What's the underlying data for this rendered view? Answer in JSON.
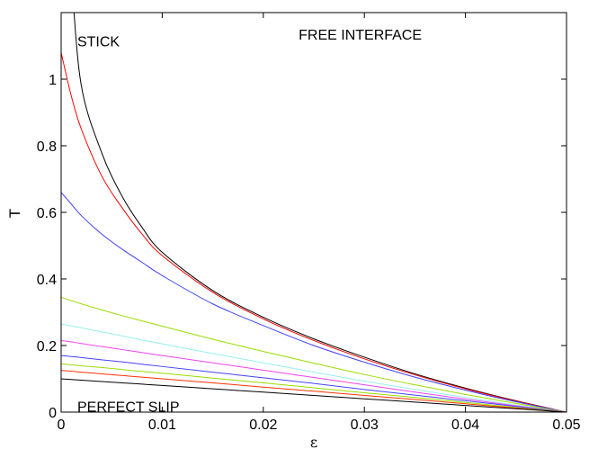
{
  "chart_data": {
    "type": "line",
    "title": "",
    "xlabel": "ε",
    "ylabel": "T",
    "xlim": [
      0,
      0.05
    ],
    "ylim": [
      0,
      1.2
    ],
    "xticks": [
      0,
      0.01,
      0.02,
      0.03,
      0.04,
      0.05
    ],
    "xtick_labels": [
      "0",
      "0.01",
      "0.02",
      "0.03",
      "0.04",
      "0.05"
    ],
    "yticks": [
      0,
      0.2,
      0.4,
      0.6,
      0.8,
      1.0
    ],
    "ytick_labels": [
      "0",
      "0.2",
      "0.4",
      "0.6",
      "0.8",
      "1"
    ],
    "grid": false,
    "annotations": [
      {
        "text": "STICK",
        "x": 0.0016,
        "y": 1.115
      },
      {
        "text": "FREE INTERFACE",
        "x": 0.0235,
        "y": 1.135
      },
      {
        "text": "PERFECT SLIP",
        "x": 0.0016,
        "y": 0.018
      }
    ],
    "x": [
      0,
      0.001,
      0.002,
      0.004,
      0.006,
      0.008,
      0.01,
      0.015,
      0.02,
      0.025,
      0.03,
      0.035,
      0.04,
      0.045,
      0.05
    ],
    "series": [
      {
        "color": "#000000",
        "values": [
          1.6,
          1.3,
          0.98,
          0.78,
          0.65,
          0.555,
          0.48,
          0.365,
          0.285,
          0.22,
          0.165,
          0.115,
          0.072,
          0.034,
          0
        ]
      },
      {
        "color": "#ff0000",
        "values": [
          1.08,
          0.95,
          0.85,
          0.71,
          0.615,
          0.535,
          0.47,
          0.36,
          0.28,
          0.215,
          0.16,
          0.112,
          0.07,
          0.033,
          0
        ]
      },
      {
        "color": "#4040ff",
        "values": [
          0.66,
          0.625,
          0.59,
          0.535,
          0.49,
          0.45,
          0.41,
          0.325,
          0.26,
          0.2,
          0.15,
          0.105,
          0.066,
          0.031,
          0
        ]
      },
      {
        "color": "#99dd00",
        "values": [
          0.345,
          0.335,
          0.325,
          0.307,
          0.29,
          0.274,
          0.258,
          0.219,
          0.182,
          0.147,
          0.113,
          0.082,
          0.053,
          0.026,
          0
        ]
      },
      {
        "color": "#99eeee",
        "values": [
          0.265,
          0.259,
          0.253,
          0.241,
          0.229,
          0.217,
          0.205,
          0.176,
          0.148,
          0.12,
          0.093,
          0.068,
          0.044,
          0.021,
          0
        ]
      },
      {
        "color": "#ee44ee",
        "values": [
          0.215,
          0.211,
          0.206,
          0.197,
          0.188,
          0.179,
          0.17,
          0.148,
          0.126,
          0.104,
          0.082,
          0.06,
          0.039,
          0.019,
          0
        ]
      },
      {
        "color": "#4444ff",
        "values": [
          0.17,
          0.167,
          0.164,
          0.157,
          0.151,
          0.144,
          0.137,
          0.12,
          0.103,
          0.086,
          0.068,
          0.051,
          0.034,
          0.017,
          0
        ]
      },
      {
        "color": "#99dd00",
        "values": [
          0.145,
          0.142,
          0.139,
          0.134,
          0.128,
          0.122,
          0.117,
          0.102,
          0.088,
          0.073,
          0.058,
          0.044,
          0.029,
          0.014,
          0
        ]
      },
      {
        "color": "#ff3300",
        "values": [
          0.125,
          0.123,
          0.12,
          0.115,
          0.11,
          0.105,
          0.1,
          0.088,
          0.075,
          0.063,
          0.05,
          0.038,
          0.025,
          0.012,
          0
        ]
      },
      {
        "color": "#000000",
        "values": [
          0.1,
          0.098,
          0.096,
          0.092,
          0.088,
          0.084,
          0.08,
          0.07,
          0.06,
          0.05,
          0.04,
          0.03,
          0.02,
          0.01,
          0
        ]
      }
    ]
  }
}
